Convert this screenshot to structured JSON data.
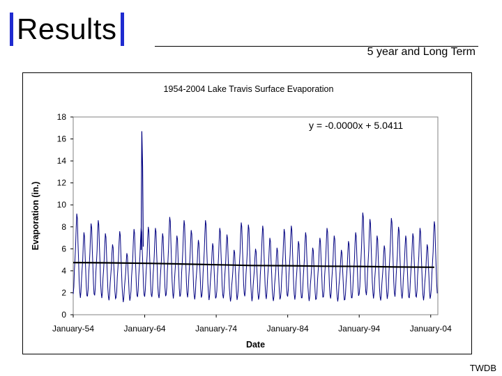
{
  "slide": {
    "title": "Results",
    "subtitle": "5 year and Long Term",
    "footer": "TWDB"
  },
  "colors": {
    "accent": "#1f2bd0",
    "series": "#000080",
    "trend": "#000000"
  },
  "chart_data": {
    "type": "line",
    "title": "1954-2004 Lake Travis Surface Evaporation",
    "xlabel": "Date",
    "ylabel": "Evaporation (in.)",
    "ylim": [
      0,
      18
    ],
    "yticks": [
      0,
      2,
      4,
      6,
      8,
      10,
      12,
      14,
      16,
      18
    ],
    "xlim": [
      1954,
      2005
    ],
    "xticks": [
      {
        "value": 1954,
        "label": "January-54"
      },
      {
        "value": 1964,
        "label": "January-64"
      },
      {
        "value": 1974,
        "label": "January-74"
      },
      {
        "value": 1984,
        "label": "January-84"
      },
      {
        "value": 1994,
        "label": "January-94"
      },
      {
        "value": 2004,
        "label": "January-04"
      }
    ],
    "annotation": "y = -0.0000x + 5.0411",
    "series": [
      {
        "name": "Monthly evaporation",
        "start_year": 1954,
        "monthly_pattern": [
          1.7,
          2.3,
          3.7,
          4.6,
          5.6,
          7.2,
          8.3,
          7.9,
          6.0,
          4.5,
          2.8,
          1.9
        ],
        "annual_peaks": [
          9.2,
          7.5,
          8.3,
          8.6,
          7.4,
          6.4,
          7.6,
          5.6,
          7.8,
          7.9,
          8.0,
          7.9,
          7.4,
          8.9,
          7.2,
          8.6,
          7.7,
          6.8,
          8.6,
          6.5,
          7.9,
          7.3,
          5.9,
          8.4,
          8.2,
          6.0,
          8.1,
          7.0,
          6.1,
          7.8,
          8.1,
          6.7,
          7.5,
          6.1,
          7.0,
          7.9,
          7.2,
          5.9,
          6.7,
          7.5,
          9.3,
          8.7,
          7.2,
          6.3,
          8.8,
          8.0,
          7.2,
          7.4,
          7.9,
          6.4,
          8.5
        ]
      },
      {
        "name": "Outlier",
        "points": [
          [
            1963.6,
            16.7
          ],
          [
            1963.7,
            13.5
          ]
        ]
      }
    ],
    "trend": {
      "name": "Linear trend",
      "segments": [
        [
          1954.0,
          4.75
        ],
        [
          1959.0,
          4.72
        ],
        [
          1964.5,
          4.68
        ],
        [
          1969.0,
          4.62
        ],
        [
          1974.0,
          4.55
        ],
        [
          1979.0,
          4.48
        ],
        [
          1984.0,
          4.46
        ],
        [
          1989.0,
          4.42
        ],
        [
          1994.0,
          4.4
        ],
        [
          1999.0,
          4.35
        ],
        [
          2004.5,
          4.32
        ]
      ]
    }
  }
}
